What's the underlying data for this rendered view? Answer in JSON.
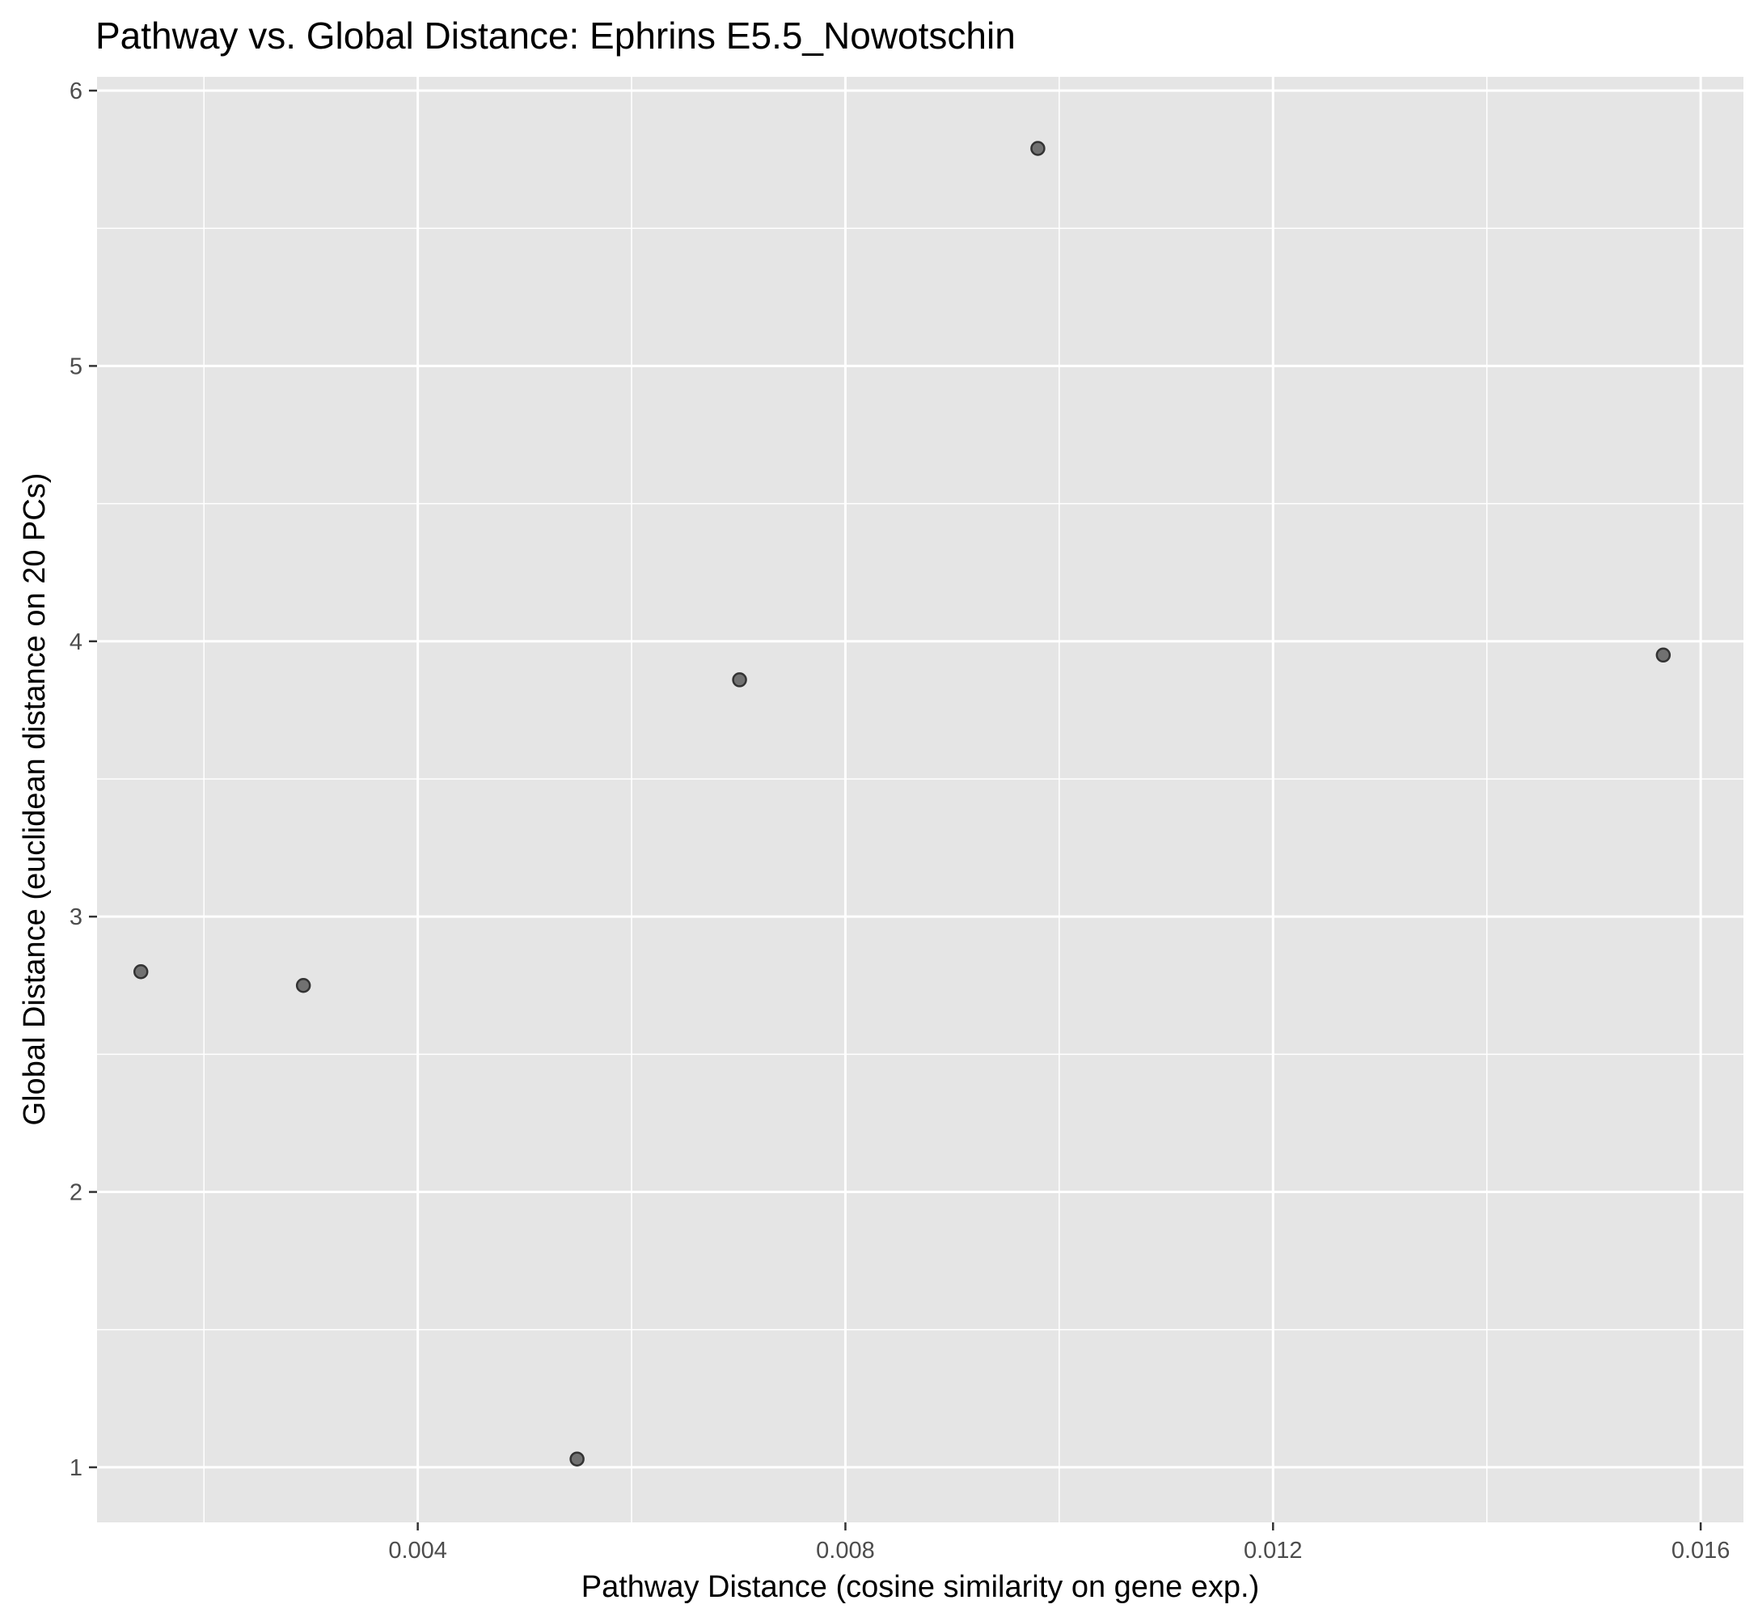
{
  "chart_data": {
    "type": "scatter",
    "title": "Pathway vs. Global Distance: Ephrins E5.5_Nowotschin",
    "xlabel": "Pathway Distance (cosine similarity on gene exp.)",
    "ylabel": "Global Distance (euclidean distance on 20 PCs)",
    "xlim": [
      0.001,
      0.0164
    ],
    "ylim": [
      0.8,
      6.05
    ],
    "x_ticks": [
      0.004,
      0.008,
      0.012,
      0.016
    ],
    "x_tick_labels": [
      "0.004",
      "0.008",
      "0.012",
      "0.016"
    ],
    "x_minor_ticks": [
      0.002,
      0.006,
      0.01,
      0.014
    ],
    "y_ticks": [
      1,
      2,
      3,
      4,
      5,
      6
    ],
    "y_tick_labels": [
      "1",
      "2",
      "3",
      "4",
      "5",
      "6"
    ],
    "y_minor_ticks": [
      1.5,
      2.5,
      3.5,
      4.5,
      5.5
    ],
    "grid": true,
    "legend": "none",
    "colors": {
      "panel": "#e5e5e5",
      "grid": "#ffffff",
      "point": "#333333"
    },
    "points": [
      {
        "x": 0.00141,
        "y": 2.8
      },
      {
        "x": 0.00293,
        "y": 2.75
      },
      {
        "x": 0.00549,
        "y": 1.03
      },
      {
        "x": 0.00701,
        "y": 3.86
      },
      {
        "x": 0.0098,
        "y": 5.79
      },
      {
        "x": 0.01565,
        "y": 3.95
      }
    ]
  }
}
